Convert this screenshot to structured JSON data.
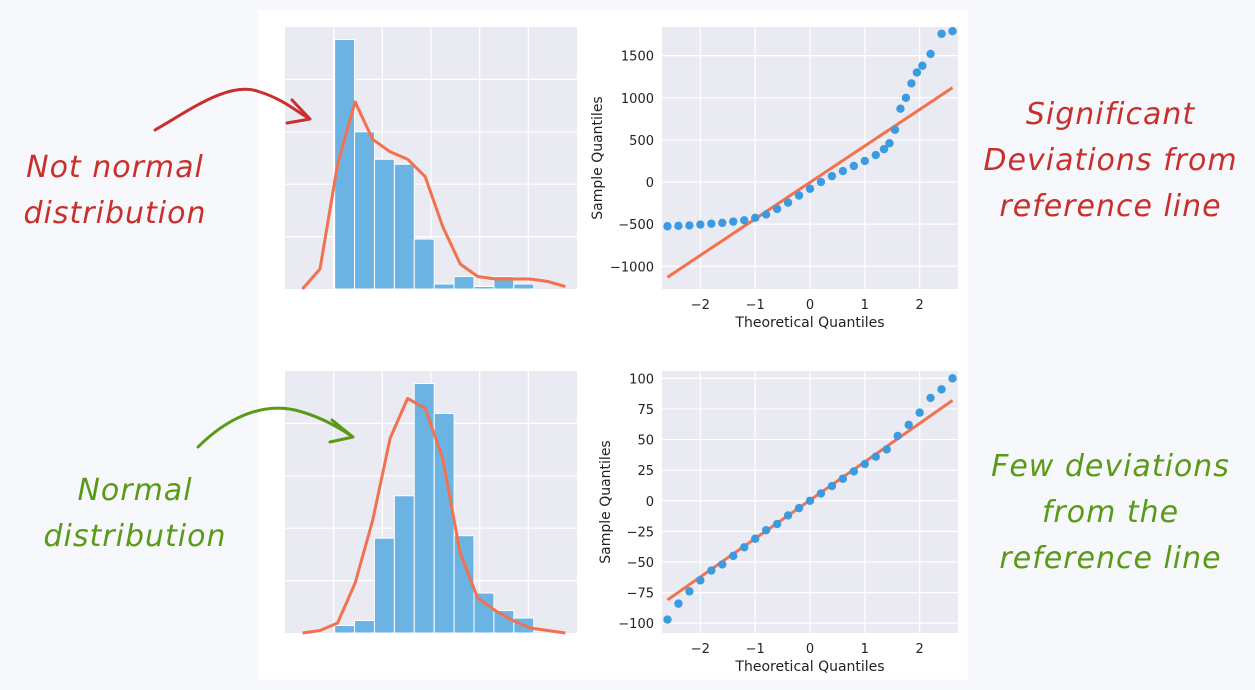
{
  "annotations": {
    "top_left": {
      "line1": "Not normal",
      "line2": "distribution",
      "color": "#c9302c"
    },
    "bottom_left": {
      "line1": "Normal",
      "line2": "distribution",
      "color": "#5a9a17"
    },
    "top_right": {
      "line1": "Significant",
      "line2": "Deviations from",
      "line3": "reference line",
      "color": "#c9302c"
    },
    "bottom_right": {
      "line1": "Few deviations",
      "line2": "from the",
      "line3": "reference line",
      "color": "#5a9a17"
    }
  },
  "colors": {
    "bars": "#6bb3e3",
    "kde": "#f2724f",
    "points": "#3a9be0",
    "reference_line": "#f2724f",
    "plot_bg": "#eaeaf2"
  },
  "chart_data": [
    {
      "type": "bar",
      "name_hint": "skewed histogram with KDE",
      "bins": 11,
      "values": [
        1.0,
        0.63,
        0.52,
        0.5,
        0.2,
        0.02,
        0.05,
        0.01,
        0.05,
        0.02,
        0.0
      ],
      "kde": [
        0.0,
        0.08,
        0.5,
        0.75,
        0.6,
        0.55,
        0.52,
        0.45,
        0.25,
        0.1,
        0.05,
        0.04,
        0.04,
        0.04,
        0.03,
        0.01
      ],
      "ylim": [
        0,
        1.05
      ],
      "xlabel": "",
      "ylabel": ""
    },
    {
      "type": "scatter",
      "name_hint": "qq plot skewed",
      "xlabel": "Theoretical Quantiles",
      "ylabel": "Sample Quantiles",
      "xticks": [
        -2,
        -1,
        0,
        1,
        2
      ],
      "yticks": [
        -1000,
        -500,
        0,
        500,
        1000,
        1500
      ],
      "xlim": [
        -2.7,
        2.7
      ],
      "ylim": [
        -1270,
        1840
      ],
      "reference_line": [
        [
          -2.6,
          -1130
        ],
        [
          2.6,
          1120
        ]
      ],
      "points": [
        [
          -2.6,
          -525
        ],
        [
          -2.4,
          -520
        ],
        [
          -2.2,
          -515
        ],
        [
          -2.0,
          -505
        ],
        [
          -1.8,
          -495
        ],
        [
          -1.6,
          -485
        ],
        [
          -1.4,
          -470
        ],
        [
          -1.2,
          -455
        ],
        [
          -1.0,
          -425
        ],
        [
          -0.8,
          -385
        ],
        [
          -0.6,
          -320
        ],
        [
          -0.4,
          -245
        ],
        [
          -0.2,
          -160
        ],
        [
          0.0,
          -80
        ],
        [
          0.2,
          0
        ],
        [
          0.4,
          70
        ],
        [
          0.6,
          130
        ],
        [
          0.8,
          190
        ],
        [
          1.0,
          250
        ],
        [
          1.2,
          320
        ],
        [
          1.35,
          390
        ],
        [
          1.45,
          460
        ],
        [
          1.55,
          620
        ],
        [
          1.65,
          870
        ],
        [
          1.75,
          1000
        ],
        [
          1.85,
          1170
        ],
        [
          1.95,
          1300
        ],
        [
          2.05,
          1380
        ],
        [
          2.2,
          1520
        ],
        [
          2.4,
          1760
        ],
        [
          2.6,
          1790
        ]
      ]
    },
    {
      "type": "bar",
      "name_hint": "normal histogram with KDE",
      "bins": 11,
      "values": [
        0.03,
        0.05,
        0.38,
        0.55,
        1.0,
        0.88,
        0.39,
        0.16,
        0.09,
        0.06,
        0.0
      ],
      "kde": [
        0.0,
        0.01,
        0.04,
        0.2,
        0.45,
        0.78,
        0.94,
        0.9,
        0.7,
        0.32,
        0.14,
        0.09,
        0.05,
        0.02,
        0.01,
        0.0
      ],
      "ylim": [
        0,
        1.05
      ],
      "xlabel": "",
      "ylabel": ""
    },
    {
      "type": "scatter",
      "name_hint": "qq plot normal",
      "xlabel": "Theoretical Quantiles",
      "ylabel": "Sample Quantiles",
      "xticks": [
        -2,
        -1,
        0,
        1,
        2
      ],
      "yticks": [
        -100,
        -75,
        -50,
        -25,
        0,
        25,
        50,
        75,
        100
      ],
      "xlim": [
        -2.7,
        2.7
      ],
      "ylim": [
        -108,
        106
      ],
      "reference_line": [
        [
          -2.6,
          -81
        ],
        [
          2.6,
          82
        ]
      ],
      "points": [
        [
          -2.6,
          -97
        ],
        [
          -2.4,
          -84
        ],
        [
          -2.2,
          -74
        ],
        [
          -2.0,
          -65
        ],
        [
          -1.8,
          -57
        ],
        [
          -1.6,
          -52
        ],
        [
          -1.4,
          -45
        ],
        [
          -1.2,
          -38
        ],
        [
          -1.0,
          -31
        ],
        [
          -0.8,
          -24
        ],
        [
          -0.6,
          -19
        ],
        [
          -0.4,
          -12
        ],
        [
          -0.2,
          -6
        ],
        [
          0.0,
          0
        ],
        [
          0.2,
          6
        ],
        [
          0.4,
          12
        ],
        [
          0.6,
          18
        ],
        [
          0.8,
          24
        ],
        [
          1.0,
          30
        ],
        [
          1.2,
          36
        ],
        [
          1.4,
          42
        ],
        [
          1.6,
          53
        ],
        [
          1.8,
          62
        ],
        [
          2.0,
          72
        ],
        [
          2.2,
          84
        ],
        [
          2.4,
          91
        ],
        [
          2.6,
          100
        ]
      ]
    }
  ]
}
